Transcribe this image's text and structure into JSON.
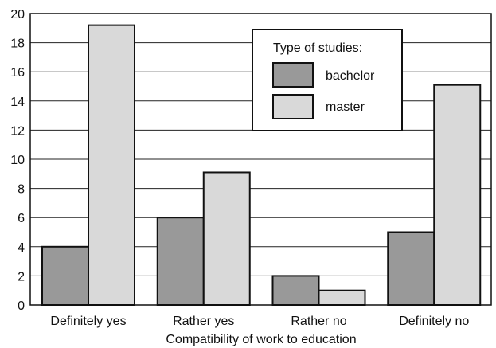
{
  "chart_data": {
    "type": "bar",
    "title": "",
    "xlabel": "Compatibility of work to education",
    "ylabel": "",
    "ylim": [
      0,
      20
    ],
    "yticks": [
      0,
      2,
      4,
      6,
      8,
      10,
      12,
      14,
      16,
      18,
      20
    ],
    "grid": true,
    "categories": [
      "Definitely yes",
      "Rather yes",
      "Rather no",
      "Definitely no"
    ],
    "series": [
      {
        "name": "bachelor",
        "values": [
          4,
          6,
          2,
          5
        ],
        "color": "#999999"
      },
      {
        "name": "master",
        "values": [
          19.2,
          9.1,
          1,
          15.1
        ],
        "color": "#d9d9d9"
      }
    ],
    "legend": {
      "title": "Type of studies:",
      "placement": "top-right"
    }
  }
}
